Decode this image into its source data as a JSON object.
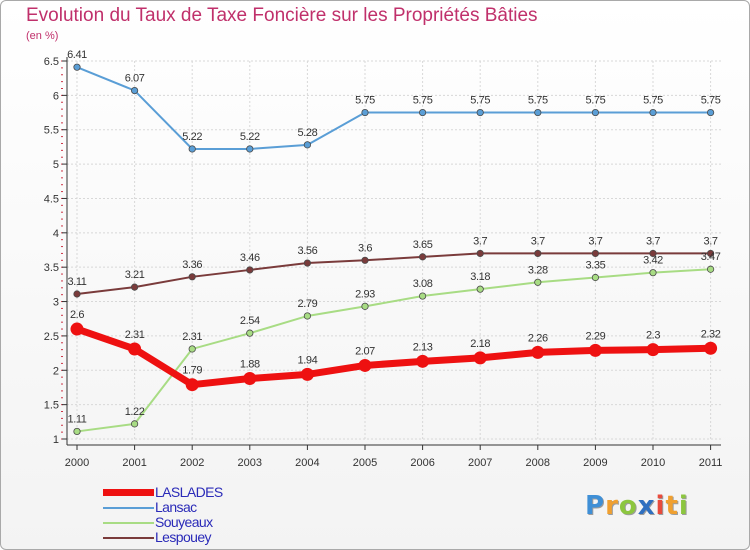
{
  "title": "Evolution du Taux de Taxe Foncière sur les Propriétés Bâties",
  "unit_label": "(en %)",
  "logo": {
    "text": "Proxiti",
    "letters": [
      {
        "ch": "P",
        "color": "#3f8fd6"
      },
      {
        "ch": "r",
        "color": "#f0a030"
      },
      {
        "ch": "o",
        "color": "#8cc63f"
      },
      {
        "ch": "x",
        "color": "#2f6fc0"
      },
      {
        "ch": "i",
        "color": "#e84b3c"
      },
      {
        "ch": "t",
        "color": "#f0a030"
      },
      {
        "ch": "i",
        "color": "#8cc63f"
      }
    ]
  },
  "chart_data": {
    "type": "line",
    "title": "Evolution du Taux de Taxe Foncière sur les Propriétés Bâties",
    "ylabel": "(en %)",
    "xlabel": "",
    "categories": [
      "2000",
      "2001",
      "2002",
      "2003",
      "2004",
      "2005",
      "2006",
      "2007",
      "2008",
      "2009",
      "2010",
      "2011"
    ],
    "ylim": [
      1,
      6.5
    ],
    "yticks": [
      "1",
      "1.5",
      "2",
      "2.5",
      "3",
      "3.5",
      "4",
      "4.5",
      "5",
      "5.5",
      "6",
      "6.5"
    ],
    "legend_position": "bottom-left",
    "series": [
      {
        "name": "Lansac",
        "color": "#5a9ed6",
        "emphasis": false,
        "values": [
          6.41,
          6.07,
          5.22,
          5.22,
          5.28,
          5.75,
          5.75,
          5.75,
          5.75,
          5.75,
          5.75,
          5.75
        ],
        "labels": [
          "6.41",
          "6.07",
          "5.22",
          "5.22",
          "5.28",
          "5.75",
          "5.75",
          "5.75",
          "5.75",
          "5.75",
          "5.75",
          "5.75"
        ]
      },
      {
        "name": "Lespouey",
        "color": "#7a3b3b",
        "emphasis": false,
        "values": [
          3.11,
          3.21,
          3.36,
          3.46,
          3.56,
          3.6,
          3.65,
          3.7,
          3.7,
          3.7,
          3.7,
          3.7
        ],
        "labels": [
          "3.11",
          "3.21",
          "3.36",
          "3.46",
          "3.56",
          "3.6",
          "3.65",
          "3.7",
          "3.7",
          "3.7",
          "3.7",
          "3.7"
        ]
      },
      {
        "name": "Souyeaux",
        "color": "#a8dc84",
        "emphasis": false,
        "values": [
          1.11,
          1.22,
          2.31,
          2.54,
          2.79,
          2.93,
          3.08,
          3.18,
          3.28,
          3.35,
          3.42,
          3.47
        ],
        "labels": [
          "1.11",
          "1.22",
          "2.31",
          "2.54",
          "2.79",
          "2.93",
          "3.08",
          "3.18",
          "3.28",
          "3.35",
          "3.42",
          "3.47"
        ]
      },
      {
        "name": "LASLADES",
        "color": "#ee1111",
        "emphasis": true,
        "values": [
          2.6,
          2.31,
          1.79,
          1.88,
          1.94,
          2.07,
          2.13,
          2.18,
          2.26,
          2.29,
          2.3,
          2.32
        ],
        "labels": [
          "2.6",
          "2.31",
          "1.79",
          "1.88",
          "1.94",
          "2.07",
          "2.13",
          "2.18",
          "2.26",
          "2.29",
          "2.3",
          "2.32"
        ]
      }
    ],
    "legend": [
      {
        "name": "LASLADES",
        "color": "#ee1111",
        "thick": true
      },
      {
        "name": "Lansac",
        "color": "#5a9ed6",
        "thick": false
      },
      {
        "name": "Souyeaux",
        "color": "#a8dc84",
        "thick": false
      },
      {
        "name": "Lespouey",
        "color": "#7a3b3b",
        "thick": false
      }
    ]
  }
}
